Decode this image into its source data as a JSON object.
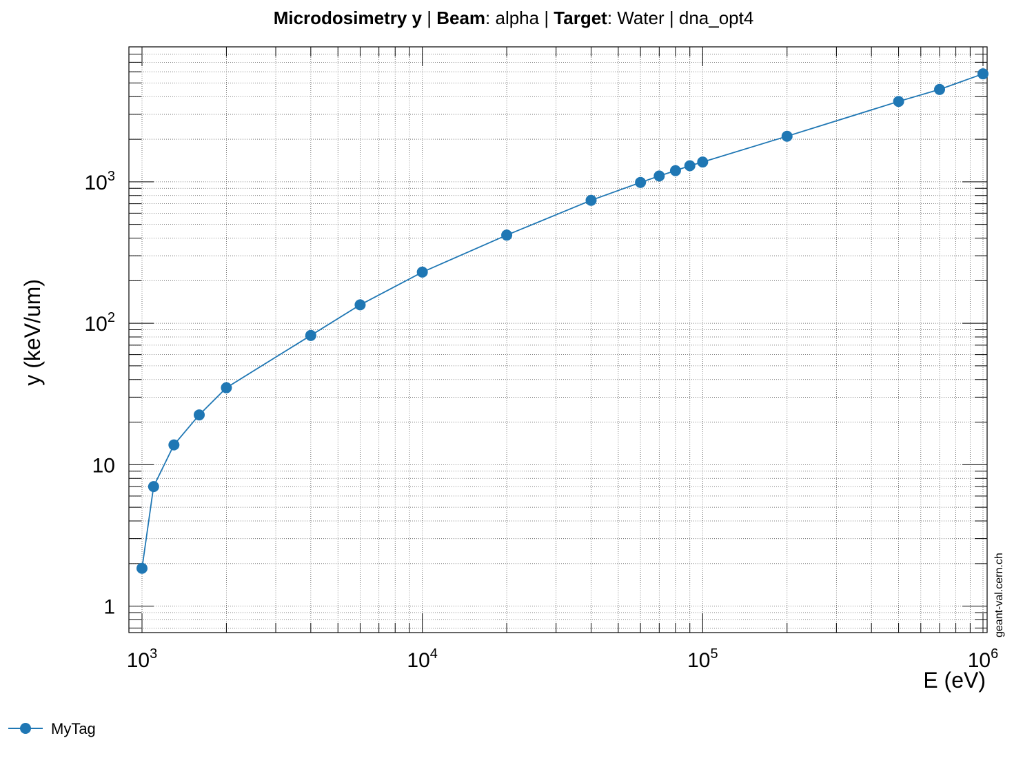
{
  "title": {
    "part1_bold": "Microdosimetry y",
    "sep1": " | ",
    "part2_bold": "Beam",
    "part2_rest": ": alpha | ",
    "part3_bold": "Target",
    "part3_rest": ": Water | dna_opt4"
  },
  "watermark": "geant-val.cern.ch",
  "legend": {
    "label": "MyTag"
  },
  "colors": {
    "series": "#1f77b4",
    "grid": "#555555",
    "frame": "#000000"
  },
  "chart_data": {
    "type": "line",
    "xlabel": "E (eV)",
    "ylabel": "y (keV/um)",
    "xscale": "log",
    "yscale": "log",
    "xlim": [
      1000,
      1000000
    ],
    "ylim": [
      0.65,
      9000
    ],
    "grid": true,
    "legend_position": "bottom-left",
    "x_ticks": [
      {
        "value": 1000,
        "base": "10",
        "exp": "3"
      },
      {
        "value": 10000,
        "base": "10",
        "exp": "4"
      },
      {
        "value": 100000,
        "base": "10",
        "exp": "5"
      },
      {
        "value": 1000000,
        "base": "10",
        "exp": "6"
      }
    ],
    "y_ticks": [
      {
        "value": 1,
        "base": "1",
        "exp": ""
      },
      {
        "value": 10,
        "base": "10",
        "exp": ""
      },
      {
        "value": 100,
        "base": "10",
        "exp": "2"
      },
      {
        "value": 1000,
        "base": "10",
        "exp": "3"
      }
    ],
    "series": [
      {
        "name": "MyTag",
        "x": [
          1000,
          1100,
          1300,
          1600,
          2000,
          4000,
          6000,
          10000,
          20000,
          40000,
          60000,
          70000,
          80000,
          90000,
          100000,
          200000,
          500000,
          700000,
          1000000
        ],
        "y": [
          1.85,
          7.0,
          13.8,
          22.5,
          35,
          82,
          135,
          230,
          420,
          740,
          990,
          1100,
          1200,
          1300,
          1380,
          2100,
          3700,
          4500,
          5800
        ]
      }
    ]
  }
}
